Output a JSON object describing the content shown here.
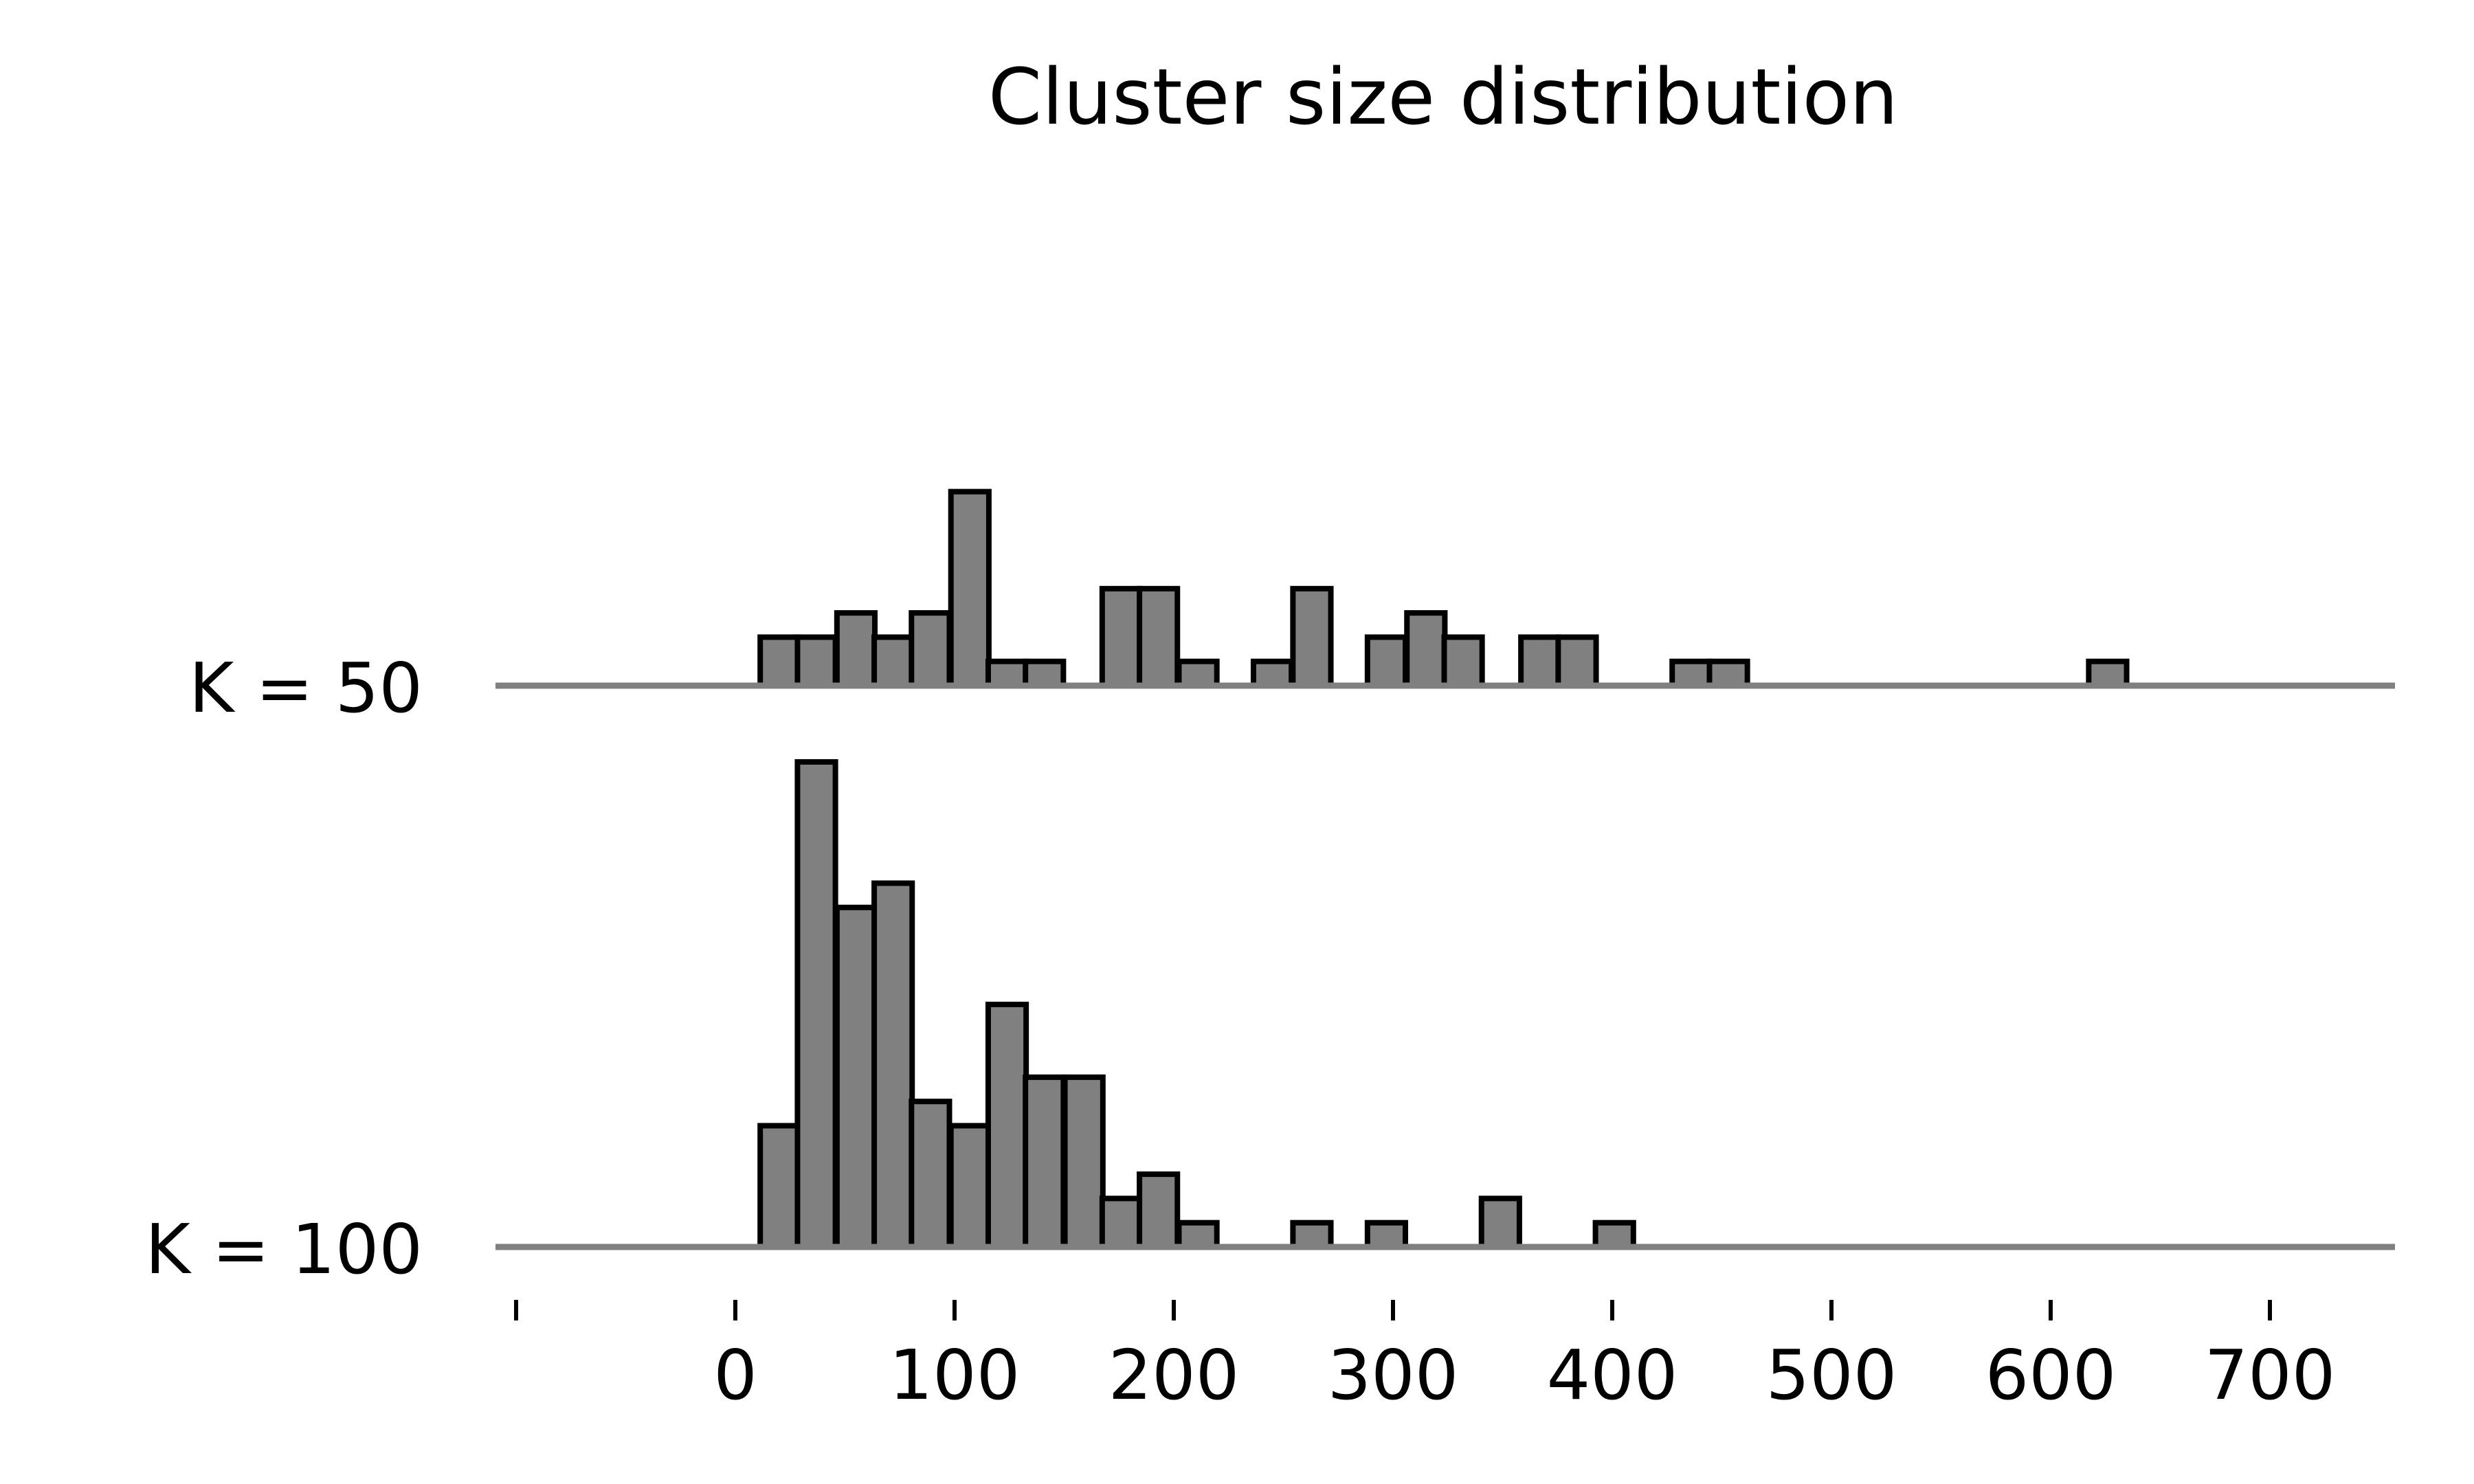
{
  "chart_data": {
    "type": "bar",
    "title": "Cluster size distribution",
    "xlabel": "",
    "ylabel": "",
    "xlim": [
      -100,
      750
    ],
    "xticks": [
      -100,
      0,
      100,
      200,
      300,
      400,
      500,
      600,
      700
    ],
    "xtick_labels": [
      "",
      "0",
      "100",
      "200",
      "300",
      "400",
      "500",
      "600",
      "700"
    ],
    "bin_width": 17.3,
    "grid": false,
    "legend": "none",
    "colors": {
      "bar_fill": "#808080",
      "bar_edge": "#000000",
      "baseline": "#808080"
    },
    "series": [
      {
        "name": "K = 50",
        "bars": [
          {
            "x": 20,
            "count": 2
          },
          {
            "x": 37,
            "count": 2
          },
          {
            "x": 55,
            "count": 3
          },
          {
            "x": 72,
            "count": 2
          },
          {
            "x": 89,
            "count": 3
          },
          {
            "x": 107,
            "count": 8
          },
          {
            "x": 124,
            "count": 1
          },
          {
            "x": 141,
            "count": 1
          },
          {
            "x": 176,
            "count": 4
          },
          {
            "x": 193,
            "count": 4
          },
          {
            "x": 211,
            "count": 1
          },
          {
            "x": 245,
            "count": 1
          },
          {
            "x": 263,
            "count": 4
          },
          {
            "x": 297,
            "count": 2
          },
          {
            "x": 315,
            "count": 3
          },
          {
            "x": 332,
            "count": 2
          },
          {
            "x": 367,
            "count": 2
          },
          {
            "x": 384,
            "count": 2
          },
          {
            "x": 436,
            "count": 1
          },
          {
            "x": 453,
            "count": 1
          },
          {
            "x": 626,
            "count": 1
          }
        ]
      },
      {
        "name": "K = 100",
        "bars": [
          {
            "x": 20,
            "count": 5
          },
          {
            "x": 37,
            "count": 20
          },
          {
            "x": 55,
            "count": 14
          },
          {
            "x": 72,
            "count": 15
          },
          {
            "x": 89,
            "count": 6
          },
          {
            "x": 107,
            "count": 5
          },
          {
            "x": 124,
            "count": 10
          },
          {
            "x": 141,
            "count": 7
          },
          {
            "x": 159,
            "count": 7
          },
          {
            "x": 176,
            "count": 2
          },
          {
            "x": 193,
            "count": 3
          },
          {
            "x": 211,
            "count": 1
          },
          {
            "x": 263,
            "count": 1
          },
          {
            "x": 297,
            "count": 1
          },
          {
            "x": 349,
            "count": 2
          },
          {
            "x": 401,
            "count": 1
          }
        ]
      }
    ]
  }
}
